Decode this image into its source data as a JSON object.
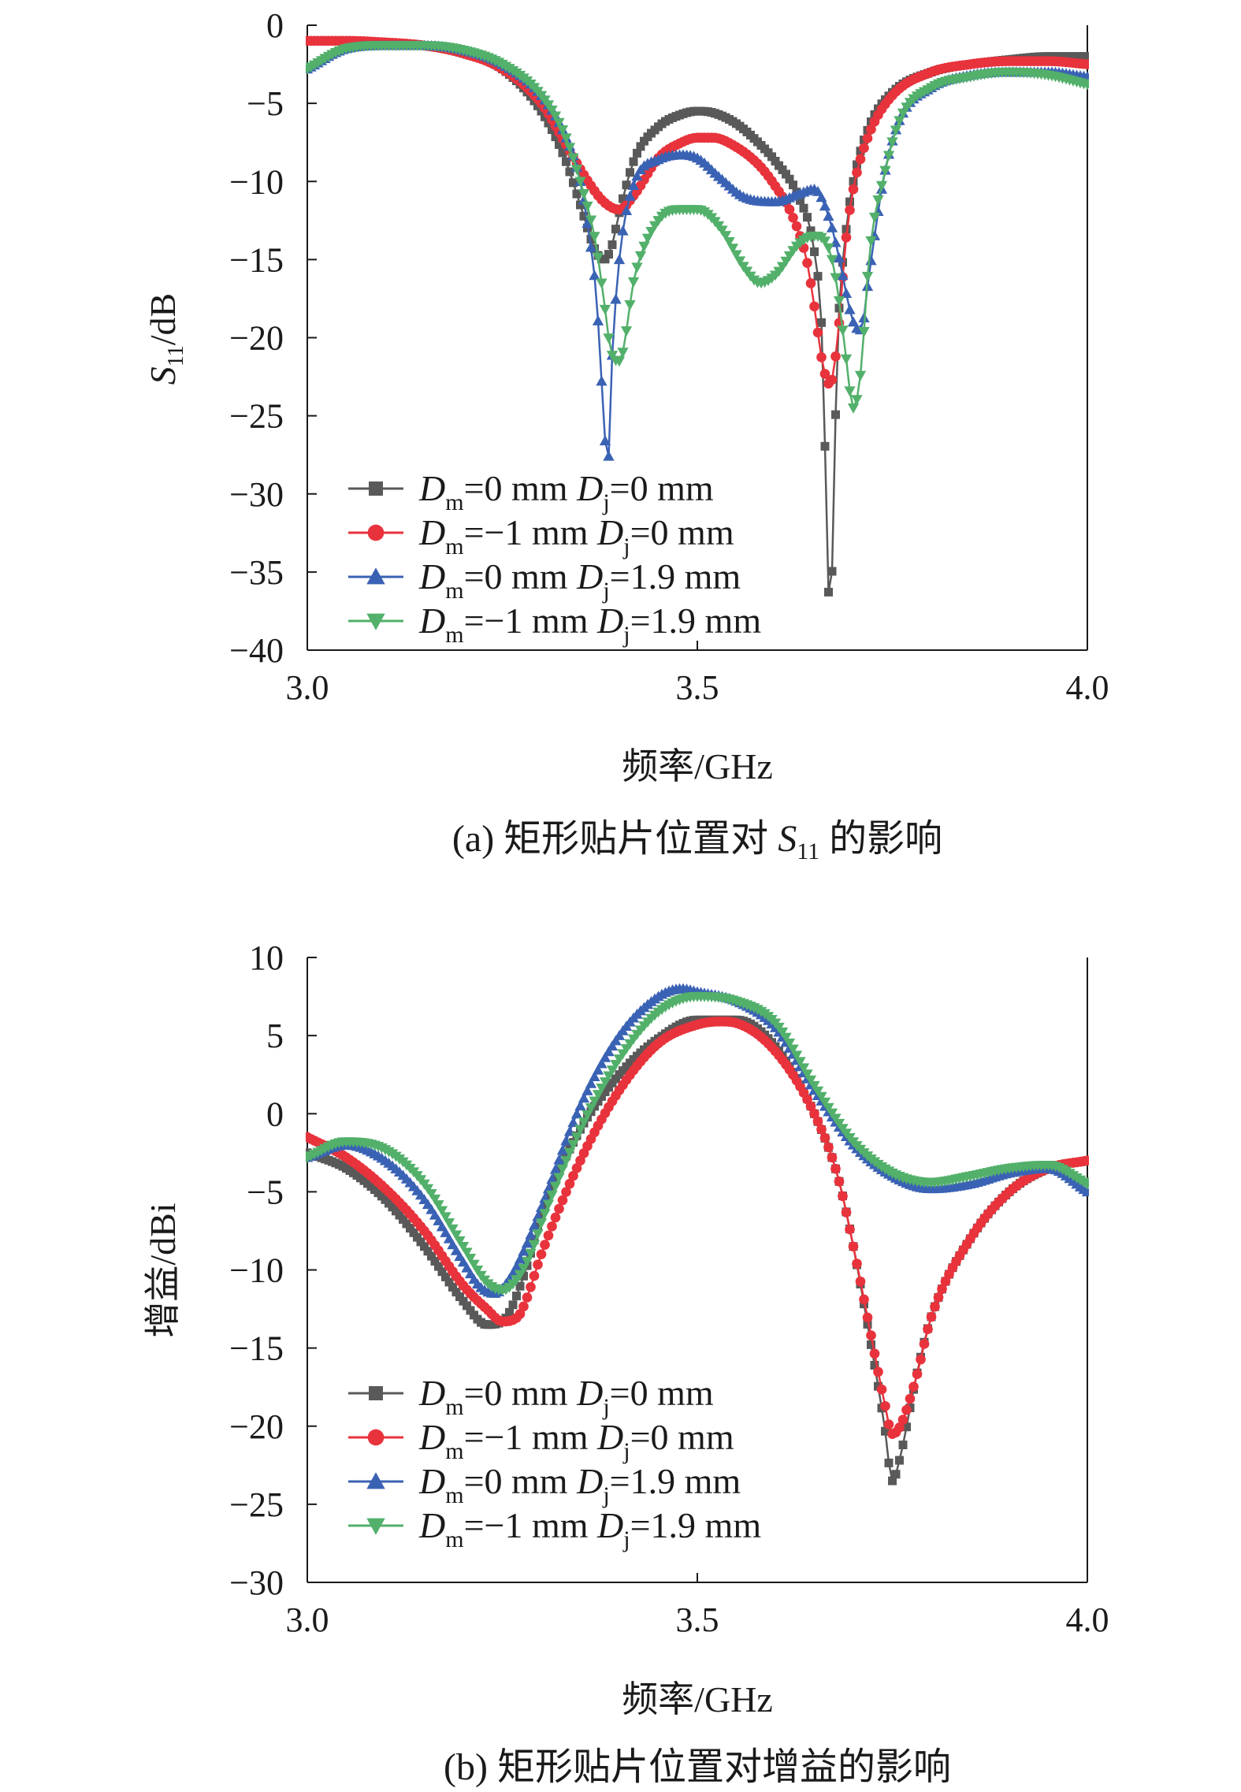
{
  "figure": {
    "caption_a": "(a) 矩形贴片位置对 S11 的影响",
    "caption_b": "(b) 矩形贴片位置对增益的影响"
  },
  "chart_data": [
    {
      "type": "line",
      "title": "(a) 矩形贴片位置对 S11 的影响",
      "xlabel": "频率/GHz",
      "ylabel": "S11/dB",
      "xlim": [
        3.0,
        4.0
      ],
      "ylim": [
        -40,
        0
      ],
      "xticks": [
        3.0,
        3.5,
        4.0
      ],
      "xtick_labels": [
        "3.0",
        "3.5",
        "4.0"
      ],
      "yticks": [
        0,
        -5,
        -10,
        -15,
        -20,
        -25,
        -30,
        -35,
        -40
      ],
      "ytick_labels": [
        "0",
        "−5",
        "−10",
        "−15",
        "−20",
        "−25",
        "−30",
        "−35",
        "−40"
      ],
      "legend_position": "lower-left",
      "series": [
        {
          "name": "Dm=0 mm  Dj=0 mm",
          "color": "#595959",
          "marker": "square",
          "x": [
            3.0,
            3.05,
            3.1,
            3.15,
            3.2,
            3.25,
            3.3,
            3.33,
            3.35,
            3.37,
            3.38,
            3.39,
            3.4,
            3.42,
            3.45,
            3.48,
            3.5,
            3.52,
            3.55,
            3.58,
            3.6,
            3.63,
            3.65,
            3.66,
            3.67,
            3.68,
            3.69,
            3.7,
            3.72,
            3.75,
            3.8,
            3.85,
            3.9,
            3.95,
            4.0
          ],
          "y": [
            -1.0,
            -1.0,
            -1.1,
            -1.3,
            -1.8,
            -2.8,
            -5.5,
            -8.5,
            -11.5,
            -14.5,
            -15.0,
            -14.2,
            -12.0,
            -8.5,
            -6.5,
            -5.7,
            -5.5,
            -5.6,
            -6.3,
            -7.6,
            -8.7,
            -11.0,
            -14.5,
            -20.0,
            -37.5,
            -20.0,
            -13.5,
            -10.0,
            -6.5,
            -4.3,
            -3.0,
            -2.5,
            -2.2,
            -2.0,
            -2.0
          ]
        },
        {
          "name": "Dm=−1 mm Dj=0 mm",
          "color": "#e8333c",
          "marker": "circle",
          "x": [
            3.0,
            3.05,
            3.1,
            3.15,
            3.2,
            3.25,
            3.3,
            3.33,
            3.36,
            3.38,
            3.4,
            3.42,
            3.45,
            3.48,
            3.5,
            3.52,
            3.55,
            3.58,
            3.6,
            3.62,
            3.64,
            3.65,
            3.66,
            3.67,
            3.68,
            3.69,
            3.7,
            3.72,
            3.75,
            3.8,
            3.85,
            3.9,
            3.95,
            4.0
          ],
          "y": [
            -1.0,
            -1.0,
            -1.1,
            -1.3,
            -1.8,
            -2.8,
            -5.0,
            -7.5,
            -10.0,
            -11.3,
            -11.8,
            -10.8,
            -8.5,
            -7.5,
            -7.2,
            -7.2,
            -7.8,
            -9.0,
            -10.3,
            -12.0,
            -15.0,
            -18.0,
            -21.5,
            -23.0,
            -20.0,
            -14.0,
            -10.5,
            -7.0,
            -4.5,
            -3.0,
            -2.5,
            -2.3,
            -2.3,
            -2.5
          ]
        },
        {
          "name": "Dm=0 mm  Dj=1.9 mm",
          "color": "#3a62b4",
          "marker": "triangle-up",
          "x": [
            3.0,
            3.05,
            3.1,
            3.15,
            3.2,
            3.25,
            3.3,
            3.33,
            3.35,
            3.36,
            3.37,
            3.38,
            3.385,
            3.39,
            3.4,
            3.42,
            3.45,
            3.48,
            3.5,
            3.53,
            3.56,
            3.6,
            3.63,
            3.65,
            3.67,
            3.68,
            3.7,
            3.71,
            3.72,
            3.74,
            3.76,
            3.8,
            3.85,
            3.9,
            3.95,
            4.0
          ],
          "y": [
            -2.8,
            -1.5,
            -1.3,
            -1.3,
            -1.6,
            -2.5,
            -4.5,
            -7.0,
            -10.0,
            -13.0,
            -17.0,
            -25.0,
            -28.5,
            -22.0,
            -15.0,
            -10.0,
            -8.6,
            -8.3,
            -8.5,
            -9.8,
            -11.0,
            -11.3,
            -10.8,
            -10.5,
            -12.5,
            -14.5,
            -19.0,
            -19.5,
            -16.0,
            -9.5,
            -6.0,
            -4.0,
            -3.2,
            -3.0,
            -3.0,
            -3.3
          ]
        },
        {
          "name": "Dm=−1 mm Dj=1.9 mm",
          "color": "#52b06a",
          "marker": "triangle-down",
          "x": [
            3.0,
            3.05,
            3.1,
            3.15,
            3.2,
            3.25,
            3.3,
            3.33,
            3.35,
            3.37,
            3.38,
            3.39,
            3.4,
            3.42,
            3.45,
            3.48,
            3.5,
            3.53,
            3.56,
            3.58,
            3.6,
            3.63,
            3.65,
            3.67,
            3.68,
            3.69,
            3.7,
            3.71,
            3.72,
            3.74,
            3.76,
            3.8,
            3.85,
            3.9,
            3.95,
            4.0
          ],
          "y": [
            -2.8,
            -1.5,
            -1.3,
            -1.3,
            -1.6,
            -2.5,
            -4.5,
            -7.0,
            -10.0,
            -14.0,
            -17.5,
            -21.0,
            -21.5,
            -16.0,
            -12.5,
            -11.8,
            -11.8,
            -13.0,
            -15.5,
            -16.5,
            -16.0,
            -14.0,
            -13.5,
            -14.5,
            -17.0,
            -21.0,
            -24.5,
            -22.0,
            -15.0,
            -9.5,
            -6.0,
            -4.0,
            -3.3,
            -3.0,
            -3.2,
            -3.8
          ]
        }
      ]
    },
    {
      "type": "line",
      "title": "(b) 矩形贴片位置对增益的影响",
      "xlabel": "频率/GHz",
      "ylabel": "增益/dBi",
      "xlim": [
        3.0,
        4.0
      ],
      "ylim": [
        -30,
        10
      ],
      "xticks": [
        3.0,
        3.5,
        4.0
      ],
      "xtick_labels": [
        "3.0",
        "3.5",
        "4.0"
      ],
      "yticks": [
        10,
        5,
        0,
        -5,
        -10,
        -15,
        -20,
        -25,
        -30
      ],
      "ytick_labels": [
        "10",
        "5",
        "0",
        "−5",
        "−10",
        "−15",
        "−20",
        "−25",
        "−30"
      ],
      "legend_position": "lower-left",
      "series": [
        {
          "name": "Dm=0 mm  Dj=0 mm",
          "color": "#595959",
          "marker": "square",
          "x": [
            3.0,
            3.05,
            3.1,
            3.15,
            3.2,
            3.23,
            3.25,
            3.28,
            3.3,
            3.35,
            3.4,
            3.45,
            3.5,
            3.55,
            3.6,
            3.65,
            3.68,
            3.7,
            3.72,
            3.74,
            3.75,
            3.76,
            3.78,
            3.8,
            3.85,
            3.9,
            3.95,
            4.0
          ],
          "y": [
            -2.5,
            -3.5,
            -5.5,
            -8.5,
            -12.0,
            -13.5,
            -13.3,
            -10.0,
            -6.5,
            -1.0,
            2.5,
            4.8,
            6.0,
            6.0,
            4.3,
            0.0,
            -4.0,
            -8.5,
            -14.0,
            -20.0,
            -23.5,
            -22.0,
            -17.0,
            -13.0,
            -8.0,
            -5.0,
            -3.5,
            -3.0
          ]
        },
        {
          "name": "Dm=−1 mm Dj=0 mm",
          "color": "#e8333c",
          "marker": "circle",
          "x": [
            3.0,
            3.05,
            3.1,
            3.15,
            3.2,
            3.23,
            3.25,
            3.27,
            3.28,
            3.3,
            3.35,
            3.4,
            3.45,
            3.5,
            3.53,
            3.55,
            3.6,
            3.65,
            3.68,
            3.7,
            3.72,
            3.74,
            3.75,
            3.76,
            3.78,
            3.8,
            3.85,
            3.9,
            3.95,
            4.0
          ],
          "y": [
            -1.5,
            -2.8,
            -4.8,
            -7.5,
            -11.0,
            -12.5,
            -13.3,
            -13.0,
            -12.0,
            -9.0,
            -3.0,
            1.5,
            4.5,
            5.7,
            5.9,
            5.8,
            4.0,
            0.0,
            -4.0,
            -8.5,
            -13.5,
            -18.5,
            -20.5,
            -20.0,
            -17.0,
            -13.0,
            -8.0,
            -5.0,
            -3.5,
            -3.0
          ]
        },
        {
          "name": "Dm=0 mm  Dj=1.9 mm",
          "color": "#3a62b4",
          "marker": "triangle-up",
          "x": [
            3.0,
            3.05,
            3.1,
            3.15,
            3.2,
            3.22,
            3.24,
            3.26,
            3.28,
            3.3,
            3.35,
            3.4,
            3.45,
            3.48,
            3.5,
            3.55,
            3.6,
            3.65,
            3.7,
            3.75,
            3.8,
            3.85,
            3.9,
            3.95,
            4.0
          ],
          "y": [
            -2.8,
            -2.0,
            -3.0,
            -5.5,
            -9.5,
            -11.0,
            -11.5,
            -10.5,
            -8.5,
            -6.0,
            0.5,
            5.0,
            7.5,
            8.0,
            7.8,
            7.2,
            5.5,
            1.5,
            -2.0,
            -4.0,
            -4.8,
            -4.5,
            -3.8,
            -3.5,
            -5.0
          ]
        },
        {
          "name": "Dm=−1 mm Dj=1.9 mm",
          "color": "#52b06a",
          "marker": "triangle-down",
          "x": [
            3.0,
            3.05,
            3.1,
            3.15,
            3.2,
            3.23,
            3.25,
            3.27,
            3.29,
            3.3,
            3.35,
            3.4,
            3.45,
            3.5,
            3.55,
            3.6,
            3.65,
            3.7,
            3.75,
            3.8,
            3.85,
            3.9,
            3.95,
            4.0
          ],
          "y": [
            -2.8,
            -1.8,
            -2.3,
            -4.5,
            -8.5,
            -10.8,
            -11.3,
            -10.5,
            -8.5,
            -7.0,
            -1.0,
            3.5,
            6.5,
            7.5,
            7.2,
            5.8,
            1.8,
            -1.8,
            -3.8,
            -4.4,
            -4.0,
            -3.5,
            -3.3,
            -4.5
          ]
        }
      ]
    }
  ]
}
